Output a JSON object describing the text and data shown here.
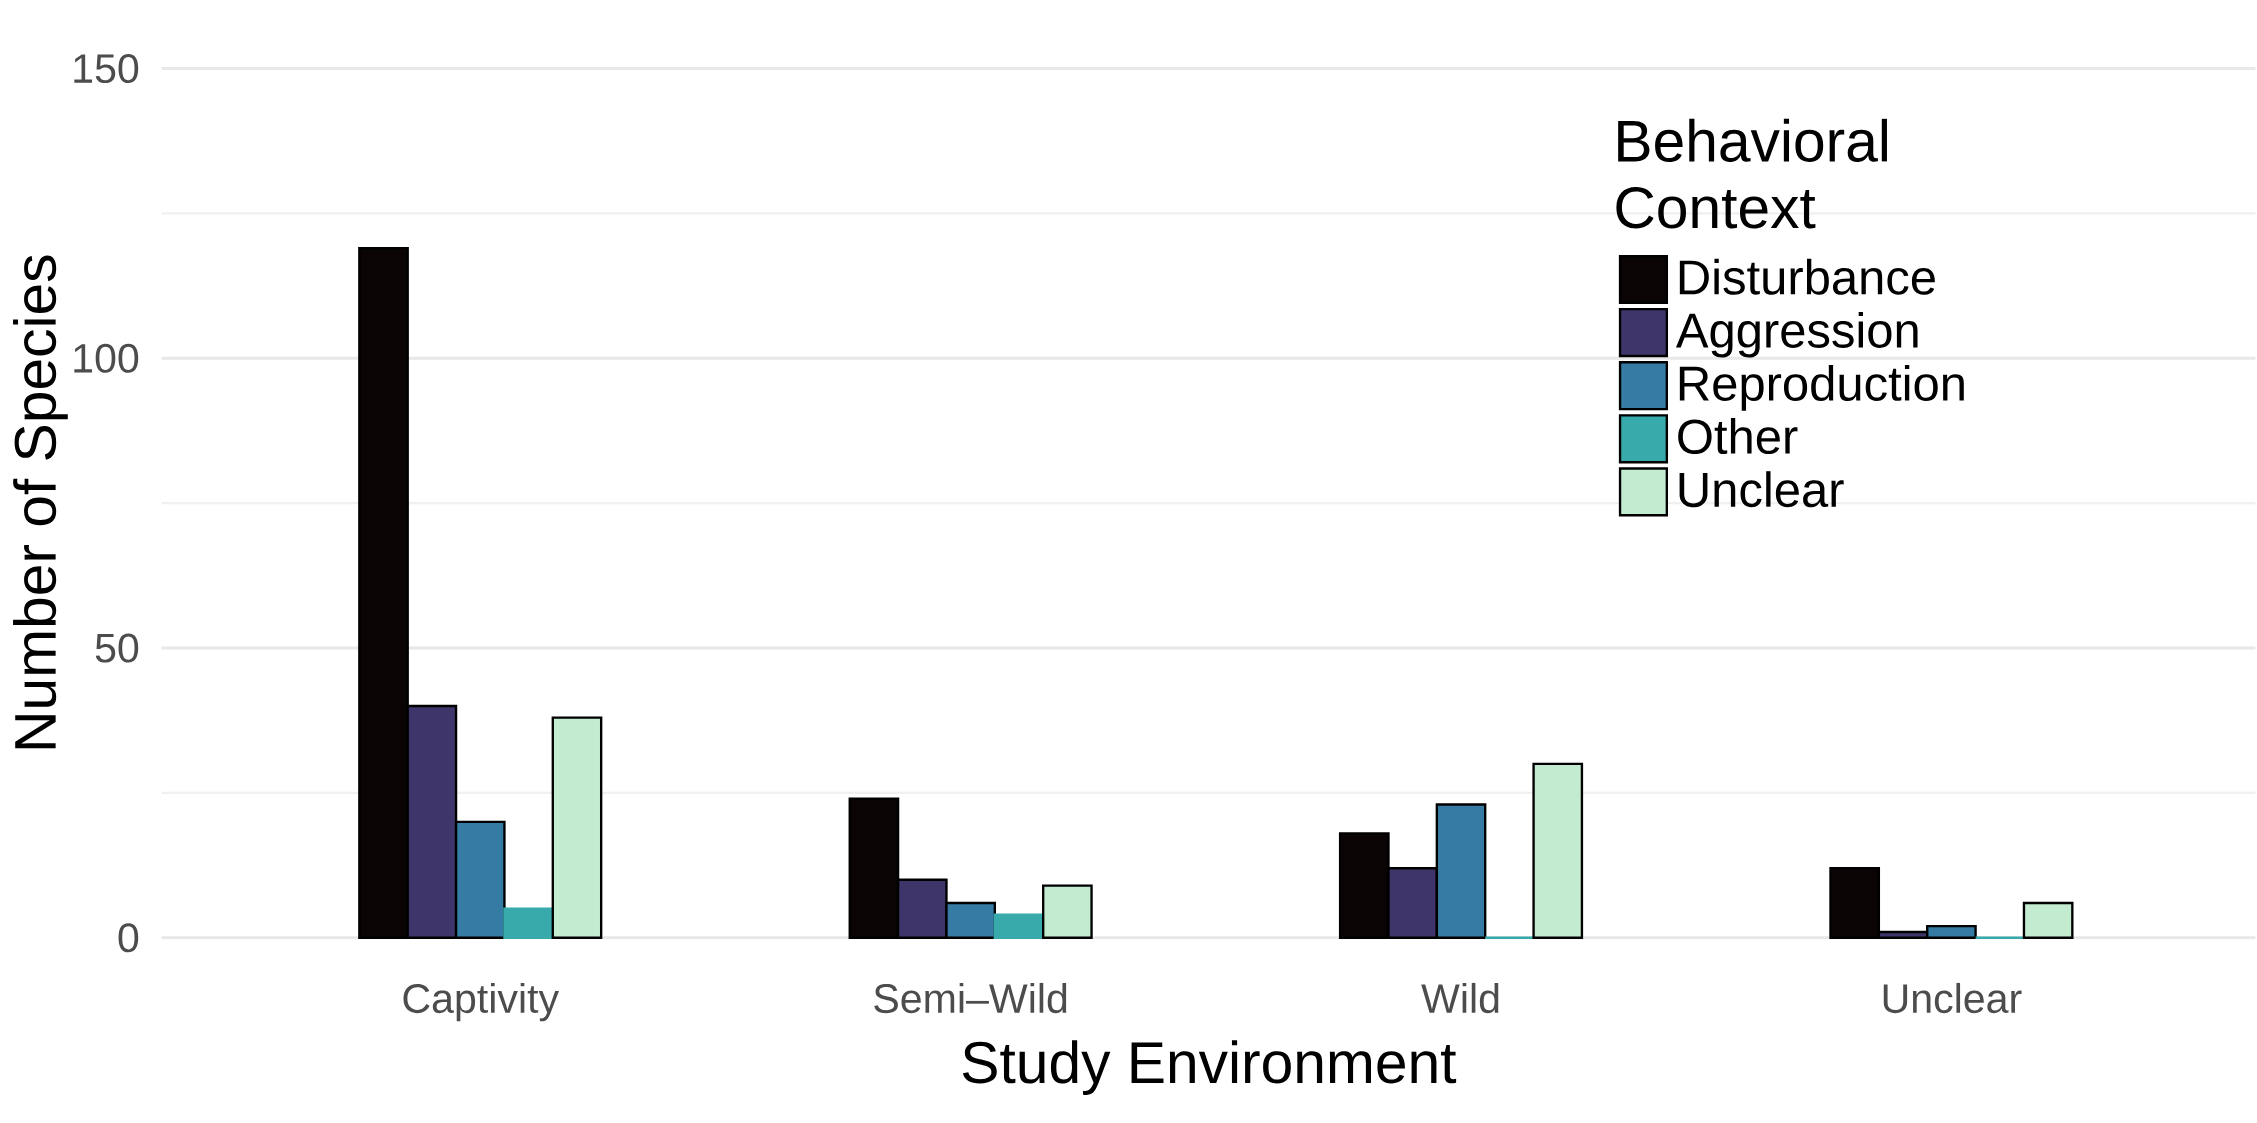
{
  "chart_data": {
    "type": "bar",
    "xlabel": "Study Environment",
    "ylabel": "Number of Species",
    "legend_title": "Behavioral Context",
    "categories": [
      "Captivity",
      "Semi–Wild",
      "Wild",
      "Unclear"
    ],
    "series": [
      {
        "name": "Disturbance",
        "color": "#0b0405",
        "values": [
          119,
          24,
          18,
          12
        ]
      },
      {
        "name": "Aggression",
        "color": "#3e356b",
        "values": [
          40,
          10,
          12,
          1
        ]
      },
      {
        "name": "Reproduction",
        "color": "#357ba3",
        "values": [
          20,
          6,
          23,
          2
        ]
      },
      {
        "name": "Other",
        "color": "#38aaac",
        "values": [
          5,
          4,
          0,
          0
        ]
      },
      {
        "name": "Unclear",
        "color": "#c2ebd0",
        "values": [
          38,
          9,
          30,
          6
        ]
      }
    ],
    "ylim": [
      0,
      150
    ],
    "yticks": [
      0,
      50,
      100,
      150
    ],
    "grid": "y",
    "legend": "top right"
  }
}
